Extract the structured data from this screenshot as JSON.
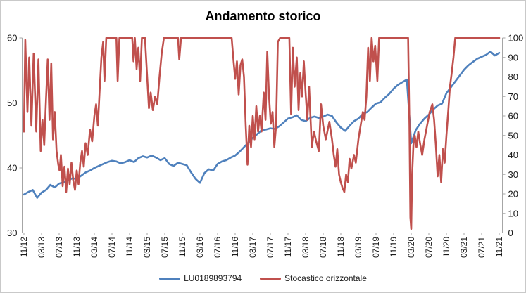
{
  "window": {
    "background": "#ffffff",
    "frame_border_color": "#c9c9c9",
    "axis_line_color": "#a6a6a6",
    "tick_text_color": "#1a1a1a"
  },
  "chart_data": {
    "type": "line",
    "title": "Andamento storico",
    "xlabel": "",
    "ylabel_left": "",
    "ylabel_right": "",
    "grid": false,
    "legend_position": "bottom",
    "x_axis": {
      "unit": "months_since_2012_11",
      "tick_step_months": 4,
      "tick_labels": [
        "11/12",
        "03/13",
        "07/13",
        "11/13",
        "03/14",
        "07/14",
        "11/14",
        "03/15",
        "07/15",
        "11/15",
        "03/16",
        "07/16",
        "11/16",
        "03/17",
        "07/17",
        "11/17",
        "03/18",
        "07/18",
        "11/18",
        "03/19",
        "07/19",
        "11/19",
        "03/20",
        "07/20",
        "11/20",
        "03/21",
        "07/21",
        "11/21"
      ]
    },
    "y_axis_left": {
      "min": 30,
      "max": 60,
      "ticks": [
        30,
        40,
        50,
        60
      ]
    },
    "y_axis_right": {
      "min": 0,
      "max": 100,
      "ticks": [
        0,
        10,
        20,
        30,
        40,
        50,
        60,
        70,
        80,
        90,
        100
      ]
    },
    "series": [
      {
        "name": "LU0189893794",
        "color": "#4F81BD",
        "axis": "left",
        "points": [
          [
            0,
            35.9
          ],
          [
            1,
            36.3
          ],
          [
            2,
            36.6
          ],
          [
            3,
            35.4
          ],
          [
            4,
            36.2
          ],
          [
            5,
            36.6
          ],
          [
            6,
            37.4
          ],
          [
            7,
            37.0
          ],
          [
            8,
            37.6
          ],
          [
            9,
            37.8
          ],
          [
            10,
            38.1
          ],
          [
            11,
            38.4
          ],
          [
            12,
            38.3
          ],
          [
            13,
            38.8
          ],
          [
            14,
            39.3
          ],
          [
            15,
            39.6
          ],
          [
            16,
            40.0
          ],
          [
            17,
            40.3
          ],
          [
            18,
            40.6
          ],
          [
            19,
            40.9
          ],
          [
            20,
            41.1
          ],
          [
            21,
            41.0
          ],
          [
            22,
            40.7
          ],
          [
            23,
            40.9
          ],
          [
            24,
            41.2
          ],
          [
            25,
            40.9
          ],
          [
            26,
            41.5
          ],
          [
            27,
            41.8
          ],
          [
            28,
            41.6
          ],
          [
            29,
            41.9
          ],
          [
            30,
            41.6
          ],
          [
            31,
            41.2
          ],
          [
            32,
            41.5
          ],
          [
            33,
            40.6
          ],
          [
            34,
            40.3
          ],
          [
            35,
            40.8
          ],
          [
            36,
            40.6
          ],
          [
            37,
            40.4
          ],
          [
            38,
            39.3
          ],
          [
            39,
            38.3
          ],
          [
            40,
            37.7
          ],
          [
            41,
            39.2
          ],
          [
            42,
            39.8
          ],
          [
            43,
            39.6
          ],
          [
            44,
            40.6
          ],
          [
            45,
            41.0
          ],
          [
            46,
            41.2
          ],
          [
            47,
            41.6
          ],
          [
            48,
            41.9
          ],
          [
            49,
            42.5
          ],
          [
            50,
            43.2
          ],
          [
            51,
            43.9
          ],
          [
            52,
            44.6
          ],
          [
            53,
            45.2
          ],
          [
            54,
            45.8
          ],
          [
            55,
            45.9
          ],
          [
            56,
            46.1
          ],
          [
            57,
            46.0
          ],
          [
            58,
            46.4
          ],
          [
            59,
            47.0
          ],
          [
            60,
            47.6
          ],
          [
            61,
            47.8
          ],
          [
            62,
            48.1
          ],
          [
            63,
            47.4
          ],
          [
            64,
            47.2
          ],
          [
            65,
            47.7
          ],
          [
            66,
            47.9
          ],
          [
            67,
            47.7
          ],
          [
            68,
            47.9
          ],
          [
            69,
            48.2
          ],
          [
            70,
            48.0
          ],
          [
            71,
            47.0
          ],
          [
            72,
            46.2
          ],
          [
            73,
            45.7
          ],
          [
            74,
            46.5
          ],
          [
            75,
            47.2
          ],
          [
            76,
            47.6
          ],
          [
            77,
            48.3
          ],
          [
            78,
            48.6
          ],
          [
            79,
            49.3
          ],
          [
            80,
            49.9
          ],
          [
            81,
            50.1
          ],
          [
            82,
            50.8
          ],
          [
            83,
            51.4
          ],
          [
            84,
            52.2
          ],
          [
            85,
            52.8
          ],
          [
            86,
            53.2
          ],
          [
            87,
            53.6
          ],
          [
            88,
            43.8
          ],
          [
            89,
            45.8
          ],
          [
            90,
            46.8
          ],
          [
            91,
            47.6
          ],
          [
            92,
            48.2
          ],
          [
            93,
            49.0
          ],
          [
            94,
            49.6
          ],
          [
            95,
            49.9
          ],
          [
            96,
            51.5
          ],
          [
            97,
            52.4
          ],
          [
            98,
            53.3
          ],
          [
            99,
            54.2
          ],
          [
            100,
            55.1
          ],
          [
            101,
            55.8
          ],
          [
            102,
            56.3
          ],
          [
            103,
            56.8
          ],
          [
            104,
            57.1
          ],
          [
            105,
            57.4
          ],
          [
            106,
            57.9
          ],
          [
            107,
            57.3
          ],
          [
            108,
            57.7
          ]
        ]
      },
      {
        "name": "Stocastico orizzontale",
        "color": "#C0504D",
        "axis": "right",
        "points": [
          [
            0,
            52
          ],
          [
            0.3,
            99
          ],
          [
            0.8,
            62
          ],
          [
            1.2,
            90
          ],
          [
            1.7,
            55
          ],
          [
            2.2,
            92
          ],
          [
            2.8,
            52
          ],
          [
            3.3,
            89
          ],
          [
            3.8,
            42
          ],
          [
            4.2,
            58
          ],
          [
            4.6,
            45
          ],
          [
            5.0,
            68
          ],
          [
            5.4,
            89
          ],
          [
            5.8,
            58
          ],
          [
            6.2,
            87
          ],
          [
            6.6,
            48
          ],
          [
            7.0,
            62
          ],
          [
            7.4,
            42
          ],
          [
            7.8,
            35
          ],
          [
            8.1,
            32
          ],
          [
            8.4,
            40
          ],
          [
            8.8,
            24
          ],
          [
            9.2,
            34
          ],
          [
            9.6,
            21
          ],
          [
            10,
            33
          ],
          [
            10.4,
            25
          ],
          [
            10.8,
            36
          ],
          [
            11.2,
            27
          ],
          [
            11.6,
            22
          ],
          [
            12,
            32
          ],
          [
            12.4,
            25
          ],
          [
            12.8,
            36
          ],
          [
            13.2,
            42
          ],
          [
            13.6,
            34
          ],
          [
            14,
            46
          ],
          [
            14.5,
            40
          ],
          [
            15,
            53
          ],
          [
            15.5,
            47
          ],
          [
            16,
            60
          ],
          [
            16.4,
            66
          ],
          [
            16.8,
            55
          ],
          [
            17.2,
            73
          ],
          [
            17.6,
            90
          ],
          [
            18,
            98
          ],
          [
            18.3,
            78
          ],
          [
            18.7,
            100
          ],
          [
            20,
            100
          ],
          [
            21,
            100
          ],
          [
            21.3,
            78
          ],
          [
            21.7,
            100
          ],
          [
            23,
            100
          ],
          [
            24.6,
            100
          ],
          [
            24.9,
            88
          ],
          [
            25.2,
            100
          ],
          [
            25.6,
            84
          ],
          [
            26,
            95
          ],
          [
            26.4,
            78
          ],
          [
            26.8,
            100
          ],
          [
            27.5,
            100
          ],
          [
            28,
            80
          ],
          [
            28.4,
            64
          ],
          [
            28.8,
            72
          ],
          [
            29.3,
            63
          ],
          [
            29.8,
            70
          ],
          [
            30.3,
            66
          ],
          [
            30.8,
            80
          ],
          [
            31.3,
            92
          ],
          [
            31.8,
            100
          ],
          [
            33,
            100
          ],
          [
            35,
            100
          ],
          [
            35.3,
            89
          ],
          [
            35.7,
            100
          ],
          [
            38,
            100
          ],
          [
            42,
            100
          ],
          [
            47.2,
            100
          ],
          [
            47.6,
            89
          ],
          [
            48,
            79
          ],
          [
            48.4,
            88
          ],
          [
            48.8,
            71
          ],
          [
            49.2,
            86
          ],
          [
            49.6,
            89
          ],
          [
            50,
            80
          ],
          [
            50.4,
            55
          ],
          [
            50.8,
            35
          ],
          [
            51.2,
            55
          ],
          [
            51.6,
            44
          ],
          [
            52,
            60
          ],
          [
            52.4,
            48
          ],
          [
            52.8,
            65
          ],
          [
            53.2,
            52
          ],
          [
            53.6,
            60
          ],
          [
            54,
            52
          ],
          [
            54.5,
            72
          ],
          [
            54.9,
            58
          ],
          [
            55.3,
            93
          ],
          [
            55.7,
            70
          ],
          [
            56.1,
            56
          ],
          [
            56.5,
            62
          ],
          [
            56.9,
            44
          ],
          [
            57.3,
            55
          ],
          [
            57.7,
            98
          ],
          [
            58.2,
            100
          ],
          [
            59.5,
            100
          ],
          [
            60.3,
            100
          ],
          [
            60.7,
            61
          ],
          [
            61.1,
            95
          ],
          [
            61.5,
            75
          ],
          [
            62,
            90
          ],
          [
            62.4,
            63
          ],
          [
            62.8,
            82
          ],
          [
            63.2,
            70
          ],
          [
            63.6,
            88
          ],
          [
            64,
            72
          ],
          [
            64.4,
            58
          ],
          [
            64.8,
            75
          ],
          [
            65.4,
            44
          ],
          [
            65.9,
            52
          ],
          [
            66.4,
            47
          ],
          [
            67,
            42
          ],
          [
            67.5,
            66
          ],
          [
            68,
            55
          ],
          [
            68.6,
            48
          ],
          [
            69.4,
            57
          ],
          [
            70,
            48
          ],
          [
            70.4,
            40
          ],
          [
            70.8,
            34
          ],
          [
            71.2,
            43
          ],
          [
            71.6,
            30
          ],
          [
            72,
            26
          ],
          [
            72.4,
            23
          ],
          [
            72.8,
            21
          ],
          [
            73.2,
            30
          ],
          [
            73.6,
            26
          ],
          [
            74,
            38
          ],
          [
            74.4,
            33
          ],
          [
            75,
            40
          ],
          [
            75.4,
            36
          ],
          [
            76,
            48
          ],
          [
            76.5,
            55
          ],
          [
            77,
            62
          ],
          [
            77.4,
            58
          ],
          [
            77.8,
            70
          ],
          [
            78.2,
            95
          ],
          [
            78.6,
            78
          ],
          [
            79,
            100
          ],
          [
            79.4,
            88
          ],
          [
            79.8,
            96
          ],
          [
            80.3,
            78
          ],
          [
            80.7,
            100
          ],
          [
            82,
            100
          ],
          [
            84,
            100
          ],
          [
            86,
            100
          ],
          [
            87.3,
            100
          ],
          [
            87.6,
            55
          ],
          [
            87.8,
            8
          ],
          [
            88,
            2
          ],
          [
            88.2,
            30
          ],
          [
            88.5,
            45
          ],
          [
            88.8,
            50
          ],
          [
            89.2,
            44
          ],
          [
            89.6,
            52
          ],
          [
            90,
            46
          ],
          [
            90.5,
            40
          ],
          [
            91,
            48
          ],
          [
            91.6,
            55
          ],
          [
            92.2,
            62
          ],
          [
            92.8,
            66
          ],
          [
            93.2,
            58
          ],
          [
            93.6,
            45
          ],
          [
            94,
            29
          ],
          [
            94.4,
            40
          ],
          [
            94.8,
            26
          ],
          [
            95.2,
            43
          ],
          [
            95.6,
            36
          ],
          [
            96,
            50
          ],
          [
            96.4,
            62
          ],
          [
            96.8,
            75
          ],
          [
            97.2,
            82
          ],
          [
            97.6,
            90
          ],
          [
            98,
            100
          ],
          [
            100,
            100
          ],
          [
            103,
            100
          ],
          [
            106,
            100
          ],
          [
            108,
            100
          ]
        ]
      }
    ]
  },
  "legend": {
    "items": [
      {
        "label": "LU0189893794",
        "color": "#4F81BD"
      },
      {
        "label": "Stocastico orizzontale",
        "color": "#C0504D"
      }
    ]
  }
}
